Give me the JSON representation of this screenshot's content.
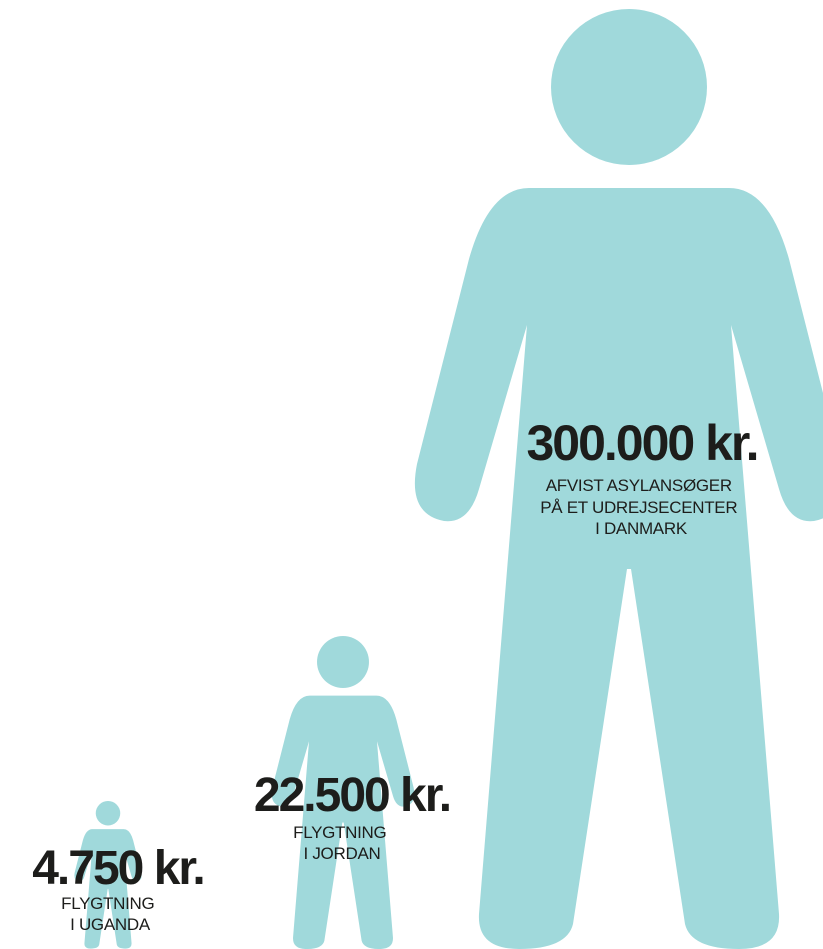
{
  "items": [
    {
      "amount": "4.750 kr.",
      "label": [
        "FLYGTNING",
        "I UGANDA"
      ]
    },
    {
      "amount": "22.500 kr.",
      "label": [
        "FLYGTNING",
        "I JORDAN"
      ]
    },
    {
      "amount": "300.000 kr.",
      "label": [
        "AFVIST ASYLANSØGER",
        "PÅ ET UDREJSECENTER",
        "I DANMARK"
      ]
    }
  ]
}
